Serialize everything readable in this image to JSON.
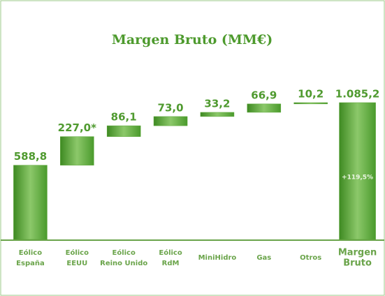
{
  "chart_data": {
    "type": "waterfall",
    "title": "Margen Bruto  (MM€)",
    "categories": [
      [
        "Eólico",
        "España"
      ],
      [
        "Eólico",
        "EEUU"
      ],
      [
        "Eólico",
        "Reino Unido"
      ],
      [
        "Eólico",
        "RdM"
      ],
      [
        "MiniHidro"
      ],
      [
        "Gas"
      ],
      [
        "Otros"
      ]
    ],
    "values": [
      588.8,
      227.0,
      86.1,
      73.0,
      33.2,
      66.9,
      10.2
    ],
    "value_labels": [
      "588,8",
      "227,0*",
      "86,1",
      "73,0",
      "33,2",
      "66,9",
      "10,2"
    ],
    "total": {
      "category": [
        "Margen",
        "Bruto"
      ],
      "value": 1085.2,
      "value_label": "1.085,2",
      "annotation": "+119,5%"
    },
    "color": "#5aa636"
  }
}
